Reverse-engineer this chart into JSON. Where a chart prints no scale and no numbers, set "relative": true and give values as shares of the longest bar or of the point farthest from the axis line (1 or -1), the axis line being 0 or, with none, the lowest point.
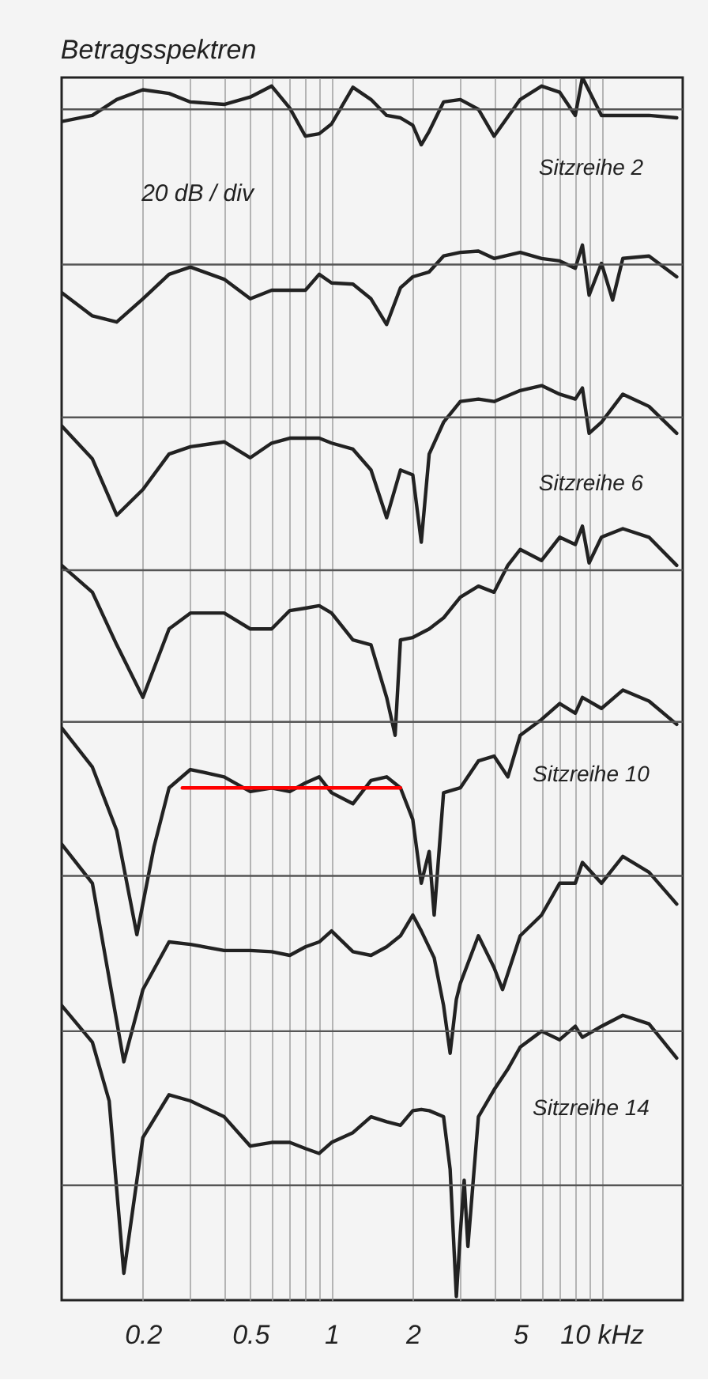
{
  "chart_data": {
    "type": "line",
    "title": "Betragsspektren",
    "relative": true,
    "log": "x",
    "grid": "x",
    "marker": "none",
    "line_style": "solid",
    "xlim": [
      0.1,
      20
    ],
    "xticks": [
      0.2,
      {
        "value": 0.3,
        "label": null
      },
      {
        "value": 0.4,
        "label": null
      },
      0.5,
      {
        "value": 0.6,
        "label": null
      },
      {
        "value": 0.7,
        "label": null
      },
      {
        "value": 0.8,
        "label": null
      },
      {
        "value": 0.9,
        "label": null
      },
      1,
      2,
      {
        "value": 3,
        "label": null
      },
      {
        "value": 4,
        "label": null
      },
      5,
      {
        "value": 6,
        "label": null
      },
      {
        "value": 7,
        "label": null
      },
      {
        "value": 8,
        "label": null
      },
      {
        "value": 9,
        "label": null
      },
      {
        "value": 10,
        "label": "10 kHz"
      }
    ],
    "series": [
      {
        "name": "Sitzreihe 2",
        "color": "#222222",
        "x": [
          0.1,
          0.13,
          0.16,
          0.2,
          0.25,
          0.3,
          0.4,
          0.5,
          0.6,
          0.7,
          0.8,
          0.9,
          1,
          1.2,
          1.4,
          1.6,
          1.8,
          2,
          2.15,
          2.3,
          2.6,
          3,
          3.5,
          4,
          5,
          6,
          7,
          8,
          8.5,
          10,
          12,
          15,
          19
        ],
        "values": [
          0.964,
          0.969,
          0.982,
          0.99,
          0.987,
          0.98,
          0.978,
          0.984,
          0.993,
          0.975,
          0.952,
          0.954,
          0.962,
          0.992,
          0.982,
          0.969,
          0.967,
          0.961,
          0.945,
          0.956,
          0.98,
          0.982,
          0.974,
          0.952,
          0.982,
          0.993,
          0.988,
          0.969,
          1,
          0.969,
          0.969,
          0.969,
          0.967
        ]
      },
      {
        "color": "#222222",
        "x": [
          0.1,
          0.13,
          0.16,
          0.2,
          0.25,
          0.3,
          0.4,
          0.5,
          0.6,
          0.7,
          0.8,
          0.9,
          1,
          1.2,
          1.4,
          1.6,
          1.8,
          2,
          2.3,
          2.6,
          3,
          3.5,
          4,
          5,
          6,
          7,
          8,
          8.5,
          9,
          10,
          11,
          12,
          15,
          19
        ],
        "values": [
          0.824,
          0.805,
          0.8,
          0.819,
          0.839,
          0.845,
          0.835,
          0.819,
          0.826,
          0.826,
          0.826,
          0.839,
          0.832,
          0.831,
          0.819,
          0.798,
          0.828,
          0.837,
          0.841,
          0.854,
          0.857,
          0.858,
          0.852,
          0.857,
          0.852,
          0.85,
          0.844,
          0.863,
          0.822,
          0.848,
          0.818,
          0.852,
          0.854,
          0.837
        ]
      },
      {
        "name": "Sitzreihe 6",
        "color": "#222222",
        "x": [
          0.1,
          0.13,
          0.16,
          0.2,
          0.25,
          0.3,
          0.4,
          0.5,
          0.6,
          0.7,
          0.8,
          0.9,
          1,
          1.2,
          1.4,
          1.6,
          1.8,
          2,
          2.15,
          2.3,
          2.6,
          3,
          3.5,
          4,
          5,
          6,
          7,
          8,
          8.5,
          9,
          10,
          12,
          15,
          19
        ],
        "values": [
          0.715,
          0.688,
          0.642,
          0.663,
          0.692,
          0.698,
          0.702,
          0.689,
          0.701,
          0.705,
          0.705,
          0.705,
          0.701,
          0.696,
          0.679,
          0.64,
          0.679,
          0.675,
          0.62,
          0.692,
          0.718,
          0.735,
          0.737,
          0.735,
          0.744,
          0.748,
          0.741,
          0.737,
          0.746,
          0.709,
          0.718,
          0.741,
          0.731,
          0.709
        ]
      },
      {
        "color": "#222222",
        "x": [
          0.1,
          0.13,
          0.16,
          0.2,
          0.25,
          0.3,
          0.4,
          0.5,
          0.6,
          0.7,
          0.8,
          0.9,
          1,
          1.2,
          1.4,
          1.6,
          1.72,
          1.8,
          2,
          2.3,
          2.6,
          3,
          3.5,
          4,
          4.5,
          5,
          6,
          7,
          8,
          8.5,
          9,
          10,
          12,
          15,
          19
        ],
        "values": [
          0.601,
          0.579,
          0.536,
          0.493,
          0.549,
          0.562,
          0.562,
          0.549,
          0.549,
          0.564,
          0.566,
          0.568,
          0.562,
          0.54,
          0.536,
          0.493,
          0.462,
          0.54,
          0.542,
          0.549,
          0.558,
          0.575,
          0.584,
          0.579,
          0.601,
          0.614,
          0.605,
          0.624,
          0.618,
          0.633,
          0.603,
          0.624,
          0.631,
          0.624,
          0.601
        ]
      },
      {
        "name": "Sitzreihe 10",
        "color": "#222222",
        "x": [
          0.1,
          0.13,
          0.16,
          0.19,
          0.22,
          0.25,
          0.3,
          0.4,
          0.5,
          0.6,
          0.7,
          0.8,
          0.9,
          1,
          1.2,
          1.4,
          1.6,
          1.8,
          2,
          2.15,
          2.3,
          2.4,
          2.6,
          3,
          3.5,
          4,
          4.5,
          5,
          6,
          7,
          8,
          8.5,
          10,
          12,
          15,
          19
        ],
        "values": [
          0.468,
          0.436,
          0.384,
          0.299,
          0.371,
          0.419,
          0.434,
          0.428,
          0.416,
          0.419,
          0.416,
          0.423,
          0.428,
          0.415,
          0.406,
          0.425,
          0.428,
          0.419,
          0.393,
          0.341,
          0.367,
          0.315,
          0.415,
          0.419,
          0.441,
          0.445,
          0.428,
          0.462,
          0.475,
          0.488,
          0.48,
          0.493,
          0.484,
          0.499,
          0.49,
          0.471
        ]
      },
      {
        "color": "#222222",
        "x": [
          0.1,
          0.13,
          0.17,
          0.2,
          0.25,
          0.3,
          0.4,
          0.5,
          0.6,
          0.7,
          0.8,
          0.9,
          1,
          1.2,
          1.4,
          1.6,
          1.8,
          2,
          2.15,
          2.4,
          2.6,
          2.75,
          2.9,
          3,
          3.5,
          4,
          4.3,
          5,
          6,
          7,
          8,
          8.5,
          10,
          12,
          15,
          19
        ],
        "values": [
          0.373,
          0.341,
          0.195,
          0.254,
          0.293,
          0.291,
          0.286,
          0.286,
          0.285,
          0.282,
          0.289,
          0.293,
          0.302,
          0.285,
          0.282,
          0.289,
          0.298,
          0.315,
          0.302,
          0.28,
          0.241,
          0.202,
          0.246,
          0.259,
          0.298,
          0.272,
          0.254,
          0.298,
          0.315,
          0.341,
          0.341,
          0.358,
          0.341,
          0.363,
          0.35,
          0.324
        ]
      },
      {
        "name": "Sitzreihe 14",
        "color": "#222222",
        "x": [
          0.1,
          0.13,
          0.15,
          0.17,
          0.2,
          0.25,
          0.3,
          0.4,
          0.5,
          0.6,
          0.7,
          0.8,
          0.9,
          1,
          1.2,
          1.4,
          1.6,
          1.8,
          2,
          2.15,
          2.3,
          2.6,
          2.75,
          2.9,
          3,
          3.1,
          3.2,
          3.5,
          4,
          4.5,
          5,
          6,
          7,
          8,
          8.5,
          10,
          12,
          15,
          19
        ],
        "values": [
          0.241,
          0.211,
          0.163,
          0.022,
          0.133,
          0.168,
          0.163,
          0.15,
          0.126,
          0.129,
          0.129,
          0.124,
          0.12,
          0.129,
          0.137,
          0.15,
          0.146,
          0.143,
          0.155,
          0.156,
          0.155,
          0.15,
          0.107,
          0.003,
          0.055,
          0.098,
          0.044,
          0.15,
          0.172,
          0.189,
          0.207,
          0.22,
          0.213,
          0.224,
          0.215,
          0.224,
          0.233,
          0.226,
          0.198
        ]
      },
      {
        "color": "#ff0000",
        "x": [
          0.28,
          1.8
        ],
        "values": [
          0.419,
          0.419
        ]
      }
    ],
    "ref_lines": [
      {
        "axis": "y",
        "value": 0.974,
        "color": "#555555"
      },
      {
        "axis": "y",
        "value": 0.847,
        "color": "#555555"
      },
      {
        "axis": "y",
        "value": 0.722,
        "color": "#555555"
      },
      {
        "axis": "y",
        "value": 0.597,
        "color": "#555555"
      },
      {
        "axis": "y",
        "value": 0.473,
        "color": "#555555"
      },
      {
        "axis": "y",
        "value": 0.347,
        "color": "#555555"
      },
      {
        "axis": "y",
        "value": 0.22,
        "color": "#555555"
      },
      {
        "axis": "y",
        "value": 0.094,
        "color": "#555555"
      }
    ],
    "annotations": [
      "20 dB / div"
    ]
  }
}
